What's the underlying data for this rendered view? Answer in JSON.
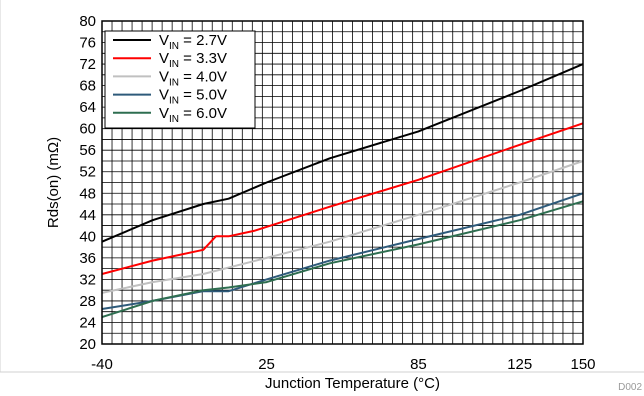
{
  "figure_id": "D002",
  "chart_data": {
    "type": "line",
    "title": "",
    "xlabel": "Junction Temperature (°C)",
    "ylabel": "Rds(on) (mΩ)",
    "ylim": [
      20,
      80
    ],
    "xlim": [
      -40,
      150
    ],
    "y_ticks": [
      "20",
      "24",
      "28",
      "32",
      "36",
      "40",
      "44",
      "48",
      "52",
      "56",
      "60",
      "64",
      "68",
      "72",
      "76",
      "80"
    ],
    "x_ticks": [
      {
        "value": -40,
        "label": "-40"
      },
      {
        "value": 25,
        "label": "25"
      },
      {
        "value": 85,
        "label": "85"
      },
      {
        "value": 125,
        "label": "125"
      },
      {
        "value": 150,
        "label": "150"
      }
    ],
    "grid": true,
    "legend_position": "top-left",
    "series": [
      {
        "name_main": "V",
        "name_sub": "IN",
        "name_rest": " = 2.7V",
        "color": "#000000",
        "x": [
          -40,
          -20,
          0,
          10,
          25,
          50,
          85,
          125,
          150
        ],
        "values": [
          39,
          43,
          46,
          47,
          50,
          54.5,
          59.5,
          67,
          72
        ]
      },
      {
        "name_main": "V",
        "name_sub": "IN",
        "name_rest": " = 3.3V",
        "color": "#ff0000",
        "x": [
          -40,
          -20,
          0,
          5,
          10,
          20,
          50,
          85,
          125,
          150
        ],
        "values": [
          33,
          35.5,
          37.5,
          40,
          40,
          41,
          45.5,
          50.5,
          57,
          61
        ]
      },
      {
        "name_main": "V",
        "name_sub": "IN",
        "name_rest": " = 4.0V",
        "color": "#c0c0c0",
        "x": [
          -40,
          -20,
          0,
          25,
          50,
          85,
          125,
          150
        ],
        "values": [
          29.5,
          31.5,
          33,
          36,
          39,
          44,
          50,
          54
        ]
      },
      {
        "name_main": "V",
        "name_sub": "IN",
        "name_rest": " = 5.0V",
        "color": "#2e5a7a",
        "x": [
          -40,
          -20,
          0,
          10,
          25,
          50,
          85,
          125,
          150
        ],
        "values": [
          26.5,
          28,
          29.8,
          29.8,
          32,
          35.5,
          39.5,
          44,
          48
        ]
      },
      {
        "name_main": "V",
        "name_sub": "IN",
        "name_rest": " = 6.0V",
        "color": "#2e6e50",
        "x": [
          -40,
          -20,
          0,
          10,
          25,
          50,
          85,
          125,
          150
        ],
        "values": [
          25,
          28,
          30,
          30.5,
          31.5,
          35,
          38.5,
          43,
          46.5
        ]
      }
    ]
  }
}
